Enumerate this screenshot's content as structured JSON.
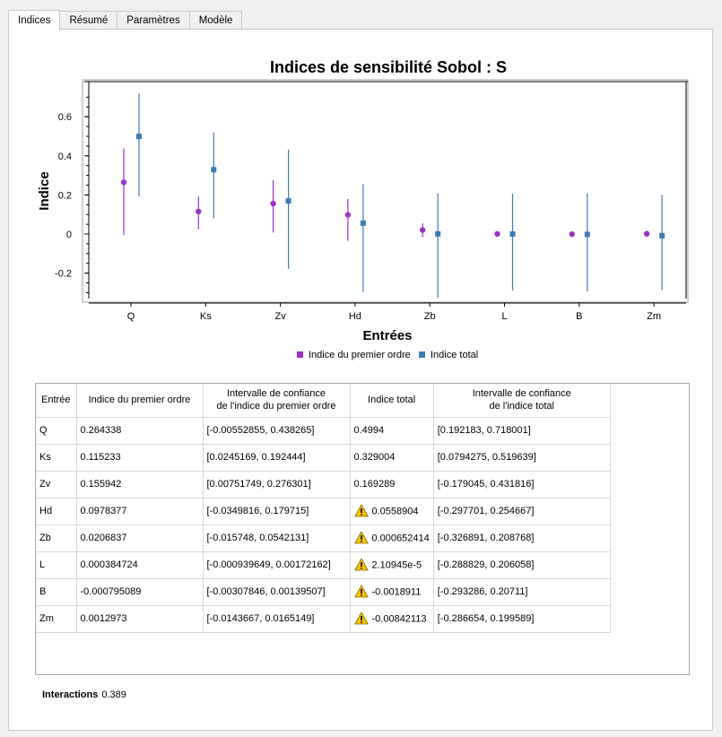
{
  "tabs": [
    "Indices",
    "Résumé",
    "Paramètres",
    "Modèle"
  ],
  "chart_data": {
    "type": "scatter",
    "title": "Indices de sensibilité Sobol : S",
    "xlabel": "Entrées",
    "ylabel": "Indice",
    "categories": [
      "Q",
      "Ks",
      "Zv",
      "Hd",
      "Zb",
      "L",
      "B",
      "Zm"
    ],
    "ylim": [
      -0.33,
      0.75
    ],
    "yticks": [
      "-0.2",
      "0",
      "0.2",
      "0.4",
      "0.6"
    ],
    "yticks_values": [
      -0.2,
      0,
      0.2,
      0.4,
      0.6
    ],
    "grid": false,
    "legend_position": "bottom",
    "series": [
      {
        "name": "Indice du premier ordre",
        "color": "#9932c8",
        "marker": "circle",
        "values": [
          0.264338,
          0.115233,
          0.155942,
          0.0978377,
          0.0206837,
          0.000384724,
          -0.000795089,
          0.0012973
        ],
        "ci_low": [
          -0.00552855,
          0.0245169,
          0.00751749,
          -0.0349816,
          -0.015748,
          -0.000939649,
          -0.00307846,
          -0.0143667
        ],
        "ci_high": [
          0.438265,
          0.192444,
          0.276301,
          0.179715,
          0.0542131,
          0.00172162,
          0.00139507,
          0.0165149
        ]
      },
      {
        "name": "Indice total",
        "color": "#3f7ab4",
        "marker": "square",
        "values": [
          0.4994,
          0.329004,
          0.169289,
          0.0558904,
          0.000652414,
          2.10945e-05,
          -0.0018911,
          -0.00842113
        ],
        "ci_low": [
          0.192183,
          0.0794275,
          -0.179045,
          -0.297701,
          -0.326891,
          -0.288829,
          -0.293286,
          -0.286654
        ],
        "ci_high": [
          0.718001,
          0.519639,
          0.431816,
          0.254667,
          0.208768,
          0.206058,
          0.20711,
          0.199589
        ]
      }
    ]
  },
  "table": {
    "headers": [
      [
        "Entrée"
      ],
      [
        "Indice du premier ordre"
      ],
      [
        "Intervalle de confiance",
        "de l'indice du premier ordre"
      ],
      [
        "Indice total"
      ],
      [
        "Intervalle de confiance",
        "de l'indice total"
      ]
    ],
    "rows": [
      {
        "entree": "Q",
        "first": "0.264338",
        "first_ci": "[-0.00552855, 0.438265]",
        "total": "0.4994",
        "total_ci": "[0.192183, 0.718001]",
        "warn": false
      },
      {
        "entree": "Ks",
        "first": "0.115233",
        "first_ci": "[0.0245169, 0.192444]",
        "total": "0.329004",
        "total_ci": "[0.0794275, 0.519639]",
        "warn": false
      },
      {
        "entree": "Zv",
        "first": "0.155942",
        "first_ci": "[0.00751749, 0.276301]",
        "total": "0.169289",
        "total_ci": "[-0.179045, 0.431816]",
        "warn": false
      },
      {
        "entree": "Hd",
        "first": "0.0978377",
        "first_ci": "[-0.0349816, 0.179715]",
        "total": "0.0558904",
        "total_ci": "[-0.297701, 0.254667]",
        "warn": true
      },
      {
        "entree": "Zb",
        "first": "0.0206837",
        "first_ci": "[-0.015748, 0.0542131]",
        "total": "0.000652414",
        "total_ci": "[-0.326891, 0.208768]",
        "warn": true
      },
      {
        "entree": "L",
        "first": "0.000384724",
        "first_ci": "[-0.000939649, 0.00172162]",
        "total": "2.10945e-5",
        "total_ci": "[-0.288829, 0.206058]",
        "warn": true
      },
      {
        "entree": "B",
        "first": "-0.000795089",
        "first_ci": "[-0.00307846, 0.00139507]",
        "total": "-0.0018911",
        "total_ci": "[-0.293286, 0.20711]",
        "warn": true
      },
      {
        "entree": "Zm",
        "first": "0.0012973",
        "first_ci": "[-0.0143667, 0.0165149]",
        "total": "-0.00842113",
        "total_ci": "[-0.286654, 0.199589]",
        "warn": true
      }
    ],
    "warn_icon": "warning-icon"
  },
  "interactions": {
    "label": "Interactions",
    "value": "0.389"
  }
}
